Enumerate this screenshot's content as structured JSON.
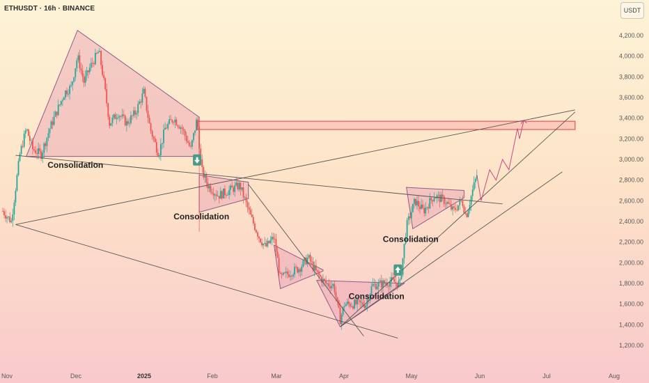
{
  "header": {
    "symbol": "ETHUSDT · 16h · BINANCE",
    "currency_button": "USDT"
  },
  "chart_data": {
    "type": "candlestick",
    "y_ticks": [
      "4,200.00",
      "4,000.00",
      "3,800.00",
      "3,600.00",
      "3,400.00",
      "3,200.00",
      "3,000.00",
      "2,800.00",
      "2,600.00",
      "2,400.00",
      "2,200.00",
      "2,000.00",
      "1,800.00",
      "1,600.00",
      "1,400.00",
      "1,200.00"
    ],
    "x_ticks": [
      {
        "label": "Nov",
        "bold": false
      },
      {
        "label": "Dec",
        "bold": false
      },
      {
        "label": "2025",
        "bold": true
      },
      {
        "label": "Feb",
        "bold": false
      },
      {
        "label": "Mar",
        "bold": false
      },
      {
        "label": "Apr",
        "bold": false
      },
      {
        "label": "May",
        "bold": false
      },
      {
        "label": "Jun",
        "bold": false
      },
      {
        "label": "Jul",
        "bold": false
      },
      {
        "label": "Aug",
        "bold": false
      }
    ],
    "price_path": [
      [
        "2024-11-01",
        2500
      ],
      [
        "2024-11-05",
        2400
      ],
      [
        "2024-11-09",
        3050
      ],
      [
        "2024-11-12",
        3300
      ],
      [
        "2024-11-15",
        3100
      ],
      [
        "2024-11-19",
        3050
      ],
      [
        "2024-11-23",
        3300
      ],
      [
        "2024-11-27",
        3500
      ],
      [
        "2024-11-30",
        3650
      ],
      [
        "2024-12-03",
        3700
      ],
      [
        "2024-12-06",
        4000
      ],
      [
        "2024-12-09",
        3750
      ],
      [
        "2024-12-12",
        3900
      ],
      [
        "2024-12-16",
        4050
      ],
      [
        "2024-12-18",
        3800
      ],
      [
        "2024-12-21",
        3350
      ],
      [
        "2024-12-25",
        3450
      ],
      [
        "2024-12-29",
        3350
      ],
      [
        "2025-01-02",
        3450
      ],
      [
        "2025-01-06",
        3650
      ],
      [
        "2025-01-09",
        3300
      ],
      [
        "2025-01-13",
        3050
      ],
      [
        "2025-01-16",
        3300
      ],
      [
        "2025-01-20",
        3400
      ],
      [
        "2025-01-24",
        3300
      ],
      [
        "2025-01-28",
        3100
      ],
      [
        "2025-01-31",
        3400
      ],
      [
        "2025-02-02",
        2900
      ],
      [
        "2025-02-05",
        2750
      ],
      [
        "2025-02-10",
        2650
      ],
      [
        "2025-02-15",
        2700
      ],
      [
        "2025-02-20",
        2750
      ],
      [
        "2025-02-25",
        2450
      ],
      [
        "2025-03-01",
        2250
      ],
      [
        "2025-03-04",
        2150
      ],
      [
        "2025-03-08",
        2250
      ],
      [
        "2025-03-11",
        1850
      ],
      [
        "2025-03-15",
        1900
      ],
      [
        "2025-03-20",
        1950
      ],
      [
        "2025-03-24",
        2050
      ],
      [
        "2025-03-28",
        1900
      ],
      [
        "2025-04-01",
        1800
      ],
      [
        "2025-04-05",
        1780
      ],
      [
        "2025-04-08",
        1450
      ],
      [
        "2025-04-10",
        1600
      ],
      [
        "2025-04-15",
        1600
      ],
      [
        "2025-04-20",
        1600
      ],
      [
        "2025-04-23",
        1780
      ],
      [
        "2025-04-28",
        1800
      ],
      [
        "2025-05-02",
        1820
      ],
      [
        "2025-05-06",
        1800
      ],
      [
        "2025-05-09",
        2350
      ],
      [
        "2025-05-13",
        2600
      ],
      [
        "2025-05-17",
        2500
      ],
      [
        "2025-05-22",
        2650
      ],
      [
        "2025-05-27",
        2600
      ],
      [
        "2025-05-31",
        2500
      ],
      [
        "2025-06-04",
        2600
      ],
      [
        "2025-06-06",
        2450
      ],
      [
        "2025-06-09",
        2700
      ],
      [
        "2025-06-11",
        2850
      ]
    ],
    "projection": [
      [
        "2025-06-11",
        2850
      ],
      [
        "2025-06-13",
        2600
      ],
      [
        "2025-06-17",
        2900
      ],
      [
        "2025-06-20",
        2800
      ],
      [
        "2025-06-23",
        3000
      ],
      [
        "2025-06-26",
        2900
      ],
      [
        "2025-06-30",
        3300
      ],
      [
        "2025-07-01",
        3200
      ],
      [
        "2025-07-03",
        3380
      ]
    ],
    "resistance_zone": {
      "from_date": "2025-01-31",
      "to_date": "2025-07-27",
      "low": 3290,
      "high": 3370
    },
    "annotations": [
      {
        "text": "Consolidation",
        "date": "2024-12-05",
        "price": 2920
      },
      {
        "text": "Consolidation",
        "date": "2025-02-02",
        "price": 2420
      },
      {
        "text": "Consolidation",
        "date": "2025-05-11",
        "price": 2200
      },
      {
        "text": "Consolidation",
        "date": "2025-04-25",
        "price": 1650
      }
    ],
    "signals": [
      {
        "direction": "down",
        "date": "2025-01-31",
        "price": 2995
      },
      {
        "direction": "up",
        "date": "2025-05-05",
        "price": 1930
      }
    ],
    "colors": {
      "up": "#26a69a",
      "down": "#ef5350",
      "pattern_fill": "#e8a0b4",
      "pattern_stroke": "#8f5a88",
      "trendline": "#555555",
      "zone_stroke": "#e53950",
      "signal_bg": "#4a9a8a"
    }
  }
}
